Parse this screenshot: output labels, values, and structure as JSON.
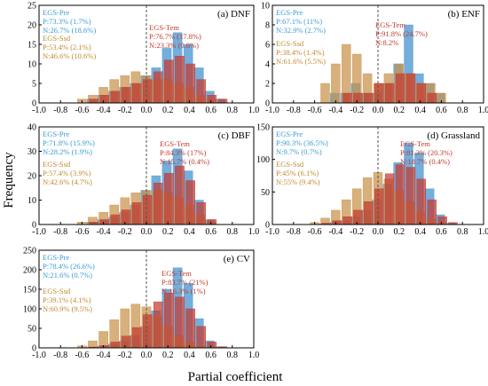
{
  "colors": {
    "pre": "#5aa0d6",
    "ssd": "#c9924a",
    "tem": "#c53a2e",
    "pre_text": "#3b9bd4",
    "ssd_text": "#c08a2e",
    "tem_text": "#c0392b",
    "zero_line": "#555555"
  },
  "figure": {
    "xlabel": "Partial coefficient",
    "ylabel": "Frequency"
  },
  "chart_data": [
    {
      "type": "bar",
      "panel": "(a) DNF",
      "xlim": [
        -1.0,
        1.0
      ],
      "ylim": [
        0,
        25
      ],
      "yticks": [
        0,
        5,
        10,
        15,
        20,
        25
      ],
      "xticks": [
        "-1.0",
        "-0.8",
        "-0.6",
        "-0.4",
        "-0.2",
        "0.0",
        "0.2",
        "0.4",
        "0.6",
        "0.8",
        "1.0"
      ],
      "bin_centers": [
        -0.6,
        -0.5,
        -0.4,
        -0.3,
        -0.2,
        -0.1,
        0.0,
        0.1,
        0.2,
        0.3,
        0.4,
        0.5,
        0.6,
        0.7
      ],
      "series": [
        {
          "name": "EGS-Pre",
          "values": [
            0,
            1,
            2,
            3,
            4,
            5,
            7,
            9,
            14,
            18,
            15,
            9,
            3,
            1
          ],
          "annotation": [
            "P:73.3% (1.7%)",
            "N:26.7% (18.6%)"
          ]
        },
        {
          "name": "EGS-Ssd",
          "values": [
            1,
            2,
            4,
            6,
            7,
            8,
            7,
            6,
            6,
            5,
            4,
            2,
            1,
            0
          ],
          "annotation": [
            "P:53.4% (2.1%)",
            "N:46.6% (10.6%)"
          ]
        },
        {
          "name": "EGS-Tem",
          "values": [
            0,
            1,
            2,
            3,
            4,
            5,
            6,
            8,
            11,
            12,
            10,
            6,
            2,
            1
          ],
          "annotation": [
            "P:76.7% (17.8%)",
            "N:23.3% (0.8%)"
          ]
        }
      ]
    },
    {
      "type": "bar",
      "panel": "(b) ENF",
      "xlim": [
        -1.0,
        1.0
      ],
      "ylim": [
        0,
        10
      ],
      "yticks": [
        0,
        2,
        4,
        6,
        8,
        10
      ],
      "xticks": [
        "-1.0",
        "-0.8",
        "-0.6",
        "-0.4",
        "-0.2",
        "0.0",
        "0.2",
        "0.4",
        "0.6",
        "0.8",
        "1.0"
      ],
      "bin_centers": [
        -0.5,
        -0.4,
        -0.3,
        -0.2,
        -0.1,
        0.0,
        0.1,
        0.2,
        0.3,
        0.4,
        0.5,
        0.6
      ],
      "series": [
        {
          "name": "EGS-Pre",
          "values": [
            0,
            1,
            1,
            2,
            1,
            1,
            2,
            4,
            8,
            3,
            2,
            1
          ],
          "annotation": [
            "P:67.1% (11%)",
            "N:32.9% (2.7%)"
          ]
        },
        {
          "name": "EGS-Ssd",
          "values": [
            2,
            4,
            6,
            5,
            3,
            2,
            3,
            4,
            3,
            2,
            2,
            1
          ],
          "annotation": [
            "P:38.4% (1.4%)",
            "N:61.6% (5.5%)"
          ]
        },
        {
          "name": "EGS-Tem",
          "values": [
            0,
            0,
            1,
            1,
            1,
            2,
            2,
            3,
            3,
            2,
            1,
            0
          ],
          "annotation": [
            "P:91.8% (24.7%)",
            "N:8.2%"
          ]
        }
      ]
    },
    {
      "type": "bar",
      "panel": "(c) DBF",
      "xlim": [
        -1.0,
        1.0
      ],
      "ylim": [
        0,
        40
      ],
      "yticks": [
        0,
        10,
        20,
        30,
        40
      ],
      "xticks": [
        "-1.0",
        "-0.8",
        "-0.6",
        "-0.4",
        "-0.2",
        "0.0",
        "0.2",
        "0.4",
        "0.6",
        "0.8",
        "1.0"
      ],
      "bin_centers": [
        -0.6,
        -0.5,
        -0.4,
        -0.3,
        -0.2,
        -0.1,
        0.0,
        0.1,
        0.2,
        0.3,
        0.4,
        0.5,
        0.6
      ],
      "series": [
        {
          "name": "EGS-Pre",
          "values": [
            0,
            1,
            2,
            3,
            5,
            8,
            14,
            20,
            26,
            31,
            22,
            10,
            2
          ],
          "annotation": [
            "P:71.8% (15.9%)",
            "N:28.2% (1.9%)"
          ]
        },
        {
          "name": "EGS-Ssd",
          "values": [
            1,
            3,
            5,
            8,
            11,
            13,
            14,
            14,
            13,
            11,
            8,
            4,
            1
          ],
          "annotation": [
            "P:57.4% (3.9%)",
            "N:42.6% (4.7%)"
          ]
        },
        {
          "name": "EGS-Tem",
          "values": [
            0,
            1,
            2,
            4,
            6,
            9,
            12,
            17,
            21,
            24,
            18,
            9,
            2
          ],
          "annotation": [
            "P:84.3% (17%)",
            "N:15.7% (0.4%)"
          ]
        }
      ]
    },
    {
      "type": "bar",
      "panel": "(d) Grassland",
      "xlim": [
        -1.0,
        1.0
      ],
      "ylim": [
        0,
        150
      ],
      "yticks": [
        0,
        50,
        100,
        150
      ],
      "xticks": [
        "-1.0",
        "-0.8",
        "-0.6",
        "-0.4",
        "-0.2",
        "0.0",
        "0.2",
        "0.4",
        "0.6",
        "0.8",
        "1.0"
      ],
      "bin_centers": [
        -0.6,
        -0.5,
        -0.4,
        -0.3,
        -0.2,
        -0.1,
        0.0,
        0.1,
        0.2,
        0.3,
        0.4,
        0.5,
        0.6,
        0.7
      ],
      "series": [
        {
          "name": "EGS-Pre",
          "values": [
            0,
            1,
            3,
            6,
            12,
            22,
            38,
            62,
            95,
            125,
            110,
            55,
            15,
            2
          ],
          "annotation": [
            "P:90.3% (36.5%)",
            "N:9.7% (0.7%)"
          ]
        },
        {
          "name": "EGS-Ssd",
          "values": [
            3,
            10,
            22,
            38,
            55,
            72,
            80,
            70,
            52,
            35,
            20,
            8,
            2,
            0
          ],
          "annotation": [
            "P:45% (6.1%)",
            "N:55% (9.4%)"
          ]
        },
        {
          "name": "EGS-Tem",
          "values": [
            0,
            2,
            6,
            12,
            22,
            35,
            55,
            78,
            92,
            88,
            70,
            38,
            12,
            3
          ],
          "annotation": [
            "P:81.3% (20.3%)",
            "N:18.7% (0.4%)"
          ]
        }
      ]
    },
    {
      "type": "bar",
      "panel": "(e) CV",
      "xlim": [
        -1.0,
        1.0
      ],
      "ylim": [
        0,
        250
      ],
      "yticks": [
        0,
        50,
        100,
        150,
        200,
        250
      ],
      "xticks": [
        "-1.0",
        "-0.8",
        "-0.6",
        "-0.4",
        "-0.2",
        "0.0",
        "0.2",
        "0.4",
        "0.6",
        "0.8",
        "1.0"
      ],
      "bin_centers": [
        -0.6,
        -0.5,
        -0.4,
        -0.3,
        -0.2,
        -0.1,
        0.0,
        0.1,
        0.2,
        0.3,
        0.4,
        0.5,
        0.6,
        0.7
      ],
      "series": [
        {
          "name": "EGS-Pre",
          "values": [
            0,
            2,
            5,
            10,
            18,
            32,
            55,
            95,
            150,
            205,
            165,
            75,
            18,
            3
          ],
          "annotation": [
            "P:78.4% (26.6%)",
            "N:21.6% (0.7%)"
          ]
        },
        {
          "name": "EGS-Ssd",
          "values": [
            5,
            18,
            42,
            72,
            100,
            112,
            105,
            82,
            55,
            32,
            15,
            5,
            1,
            0
          ],
          "annotation": [
            "P:39.1% (4.1%)",
            "N:60.9% (9.5%)"
          ]
        },
        {
          "name": "EGS-Tem",
          "values": [
            0,
            2,
            6,
            15,
            30,
            52,
            85,
            118,
            140,
            130,
            100,
            55,
            15,
            3
          ],
          "annotation": [
            "P:83.7% (21%)",
            "N:16.3% (1%)"
          ]
        }
      ]
    }
  ]
}
